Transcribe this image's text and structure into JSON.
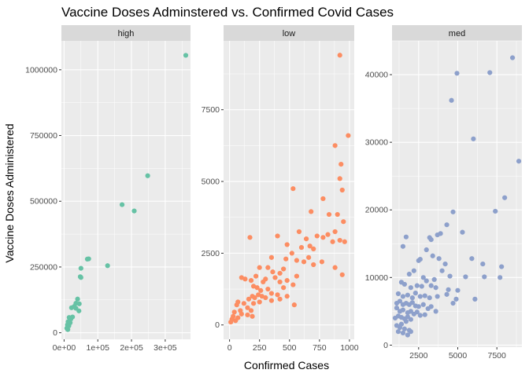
{
  "chart_data": {
    "type": "scatter",
    "title": "Vaccine Doses Adminstered vs. Confirmed Covid Cases",
    "xlabel": "Confirmed Cases",
    "ylabel": "Vaccine Doses Administered",
    "grid": true,
    "legend": "none",
    "facets": [
      {
        "name": "high",
        "color": "#66c2a5",
        "xlim": [
          -8000,
          375000
        ],
        "ylim": [
          -25000,
          1110000
        ],
        "x_ticks": [
          0,
          100000,
          200000,
          300000
        ],
        "x_tick_labels": [
          "0e+00",
          "1e+05",
          "2e+05",
          "3e+05"
        ],
        "y_ticks": [
          0,
          250000,
          500000,
          750000,
          1000000
        ],
        "y_tick_labels": [
          "0",
          "250000",
          "500000",
          "750000",
          "1000000"
        ],
        "points": [
          [
            361000,
            1055000
          ],
          [
            248000,
            597000
          ],
          [
            172000,
            487000
          ],
          [
            208000,
            463000
          ],
          [
            129000,
            255000
          ],
          [
            73000,
            281000
          ],
          [
            69000,
            280000
          ],
          [
            50000,
            245000
          ],
          [
            48000,
            213000
          ],
          [
            50000,
            210000
          ],
          [
            40000,
            128000
          ],
          [
            35000,
            112000
          ],
          [
            45000,
            110000
          ],
          [
            30000,
            100000
          ],
          [
            35000,
            93000
          ],
          [
            44000,
            83000
          ],
          [
            22000,
            95000
          ],
          [
            25000,
            60000
          ],
          [
            15000,
            58000
          ],
          [
            20000,
            52000
          ],
          [
            12000,
            42000
          ],
          [
            18000,
            38000
          ],
          [
            10000,
            30000
          ],
          [
            14000,
            26000
          ],
          [
            8000,
            17000
          ],
          [
            11000,
            12000
          ]
        ]
      },
      {
        "name": "low",
        "color": "#fc8d62",
        "xlim": [
          -50,
          1040
        ],
        "ylim": [
          -500,
          9900
        ],
        "x_ticks": [
          0,
          250,
          500,
          750,
          1000
        ],
        "x_tick_labels": [
          "0",
          "250",
          "500",
          "750",
          "1000"
        ],
        "y_ticks": [
          0,
          2500,
          5000,
          7500
        ],
        "y_tick_labels": [
          "0",
          "2500",
          "5000",
          "7500"
        ],
        "points": [
          [
            920,
            9400
          ],
          [
            990,
            6600
          ],
          [
            880,
            6250
          ],
          [
            930,
            5600
          ],
          [
            920,
            5100
          ],
          [
            940,
            4700
          ],
          [
            530,
            4750
          ],
          [
            780,
            4400
          ],
          [
            680,
            3950
          ],
          [
            830,
            3850
          ],
          [
            900,
            3850
          ],
          [
            950,
            3600
          ],
          [
            880,
            3250
          ],
          [
            820,
            3150
          ],
          [
            780,
            3050
          ],
          [
            860,
            2900
          ],
          [
            920,
            2950
          ],
          [
            960,
            2900
          ],
          [
            400,
            3100
          ],
          [
            580,
            3250
          ],
          [
            730,
            3100
          ],
          [
            640,
            3000
          ],
          [
            480,
            2800
          ],
          [
            600,
            2700
          ],
          [
            670,
            2750
          ],
          [
            700,
            2650
          ],
          [
            170,
            3050
          ],
          [
            520,
            2500
          ],
          [
            350,
            2350
          ],
          [
            470,
            2300
          ],
          [
            560,
            2250
          ],
          [
            620,
            2200
          ],
          [
            660,
            2350
          ],
          [
            700,
            2100
          ],
          [
            770,
            2200
          ],
          [
            880,
            2000
          ],
          [
            940,
            1750
          ],
          [
            320,
            2000
          ],
          [
            360,
            1850
          ],
          [
            420,
            1800
          ],
          [
            450,
            1950
          ],
          [
            250,
            2000
          ],
          [
            300,
            1600
          ],
          [
            380,
            1650
          ],
          [
            420,
            1500
          ],
          [
            480,
            1550
          ],
          [
            530,
            1400
          ],
          [
            560,
            1700
          ],
          [
            100,
            1650
          ],
          [
            130,
            1600
          ],
          [
            180,
            1550
          ],
          [
            220,
            1700
          ],
          [
            280,
            1500
          ],
          [
            200,
            1350
          ],
          [
            230,
            1300
          ],
          [
            260,
            1200
          ],
          [
            320,
            1250
          ],
          [
            350,
            1100
          ],
          [
            400,
            1050
          ],
          [
            450,
            1300
          ],
          [
            480,
            1000
          ],
          [
            70,
            800
          ],
          [
            120,
            750
          ],
          [
            160,
            900
          ],
          [
            190,
            1000
          ],
          [
            210,
            950
          ],
          [
            240,
            1050
          ],
          [
            270,
            1000
          ],
          [
            300,
            950
          ],
          [
            150,
            600
          ],
          [
            180,
            500
          ],
          [
            90,
            500
          ],
          [
            60,
            700
          ],
          [
            200,
            750
          ],
          [
            250,
            800
          ],
          [
            350,
            850
          ],
          [
            420,
            900
          ],
          [
            540,
            700
          ],
          [
            150,
            350
          ],
          [
            190,
            300
          ],
          [
            40,
            450
          ],
          [
            30,
            300
          ],
          [
            20,
            200
          ],
          [
            10,
            100
          ],
          [
            50,
            150
          ],
          [
            70,
            250
          ],
          [
            100,
            380
          ]
        ]
      },
      {
        "name": "med",
        "color": "#8da0cb",
        "xlim": [
          800,
          9100
        ],
        "ylim": [
          -300,
          45000
        ],
        "x_ticks": [
          2500,
          5000,
          7500
        ],
        "x_tick_labels": [
          "2500",
          "5000",
          "7500"
        ],
        "y_ticks": [
          0,
          10000,
          20000,
          30000,
          40000
        ],
        "y_tick_labels": [
          "0",
          "10000",
          "20000",
          "30000",
          "40000"
        ],
        "points": [
          [
            8500,
            42500
          ],
          [
            4950,
            40200
          ],
          [
            7050,
            40300
          ],
          [
            4600,
            36200
          ],
          [
            6000,
            30500
          ],
          [
            8900,
            27200
          ],
          [
            8000,
            21800
          ],
          [
            7400,
            19800
          ],
          [
            4700,
            19700
          ],
          [
            4300,
            17800
          ],
          [
            5300,
            16700
          ],
          [
            3700,
            16300
          ],
          [
            3900,
            16500
          ],
          [
            3200,
            15900
          ],
          [
            3300,
            15600
          ],
          [
            1700,
            16000
          ],
          [
            1500,
            14600
          ],
          [
            3000,
            14100
          ],
          [
            2500,
            12500
          ],
          [
            2600,
            12700
          ],
          [
            3400,
            13200
          ],
          [
            3800,
            12800
          ],
          [
            4200,
            12000
          ],
          [
            5900,
            12800
          ],
          [
            7800,
            11600
          ],
          [
            6600,
            12000
          ],
          [
            4000,
            11000
          ],
          [
            4500,
            10200
          ],
          [
            5500,
            10100
          ],
          [
            7700,
            10000
          ],
          [
            6700,
            10100
          ],
          [
            2200,
            11000
          ],
          [
            1900,
            10500
          ],
          [
            2800,
            10000
          ],
          [
            3000,
            9500
          ],
          [
            3500,
            9700
          ],
          [
            1400,
            9300
          ],
          [
            1600,
            9000
          ],
          [
            2000,
            8500
          ],
          [
            2400,
            8800
          ],
          [
            2700,
            8700
          ],
          [
            3300,
            8800
          ],
          [
            3600,
            8500
          ],
          [
            4400,
            8200
          ],
          [
            5000,
            8100
          ],
          [
            1200,
            7600
          ],
          [
            1500,
            7200
          ],
          [
            1800,
            7400
          ],
          [
            2100,
            7000
          ],
          [
            2300,
            7700
          ],
          [
            2600,
            7200
          ],
          [
            2900,
            7300
          ],
          [
            3200,
            7000
          ],
          [
            3700,
            7200
          ],
          [
            4300,
            7500
          ],
          [
            4900,
            6800
          ],
          [
            6100,
            6800
          ],
          [
            4700,
            6200
          ],
          [
            1100,
            6200
          ],
          [
            1300,
            6500
          ],
          [
            1500,
            6000
          ],
          [
            1700,
            6200
          ],
          [
            1900,
            6000
          ],
          [
            2100,
            6300
          ],
          [
            2300,
            5800
          ],
          [
            2500,
            5700
          ],
          [
            2800,
            6000
          ],
          [
            3100,
            5400
          ],
          [
            3300,
            5700
          ],
          [
            3600,
            5000
          ],
          [
            1100,
            5500
          ],
          [
            1300,
            5000
          ],
          [
            1500,
            5200
          ],
          [
            1800,
            4800
          ],
          [
            2000,
            5000
          ],
          [
            2200,
            4600
          ],
          [
            2400,
            4900
          ],
          [
            2600,
            4400
          ],
          [
            2900,
            4500
          ],
          [
            1200,
            4300
          ],
          [
            1400,
            4100
          ],
          [
            1600,
            3900
          ],
          [
            1800,
            4200
          ],
          [
            2000,
            3800
          ],
          [
            1000,
            4000
          ],
          [
            1700,
            3500
          ],
          [
            1400,
            3100
          ],
          [
            1100,
            2900
          ],
          [
            1300,
            2600
          ],
          [
            1600,
            2400
          ],
          [
            1900,
            2200
          ],
          [
            1200,
            2000
          ],
          [
            1500,
            1800
          ],
          [
            1800,
            1500
          ],
          [
            2000,
            2000
          ]
        ]
      }
    ]
  }
}
